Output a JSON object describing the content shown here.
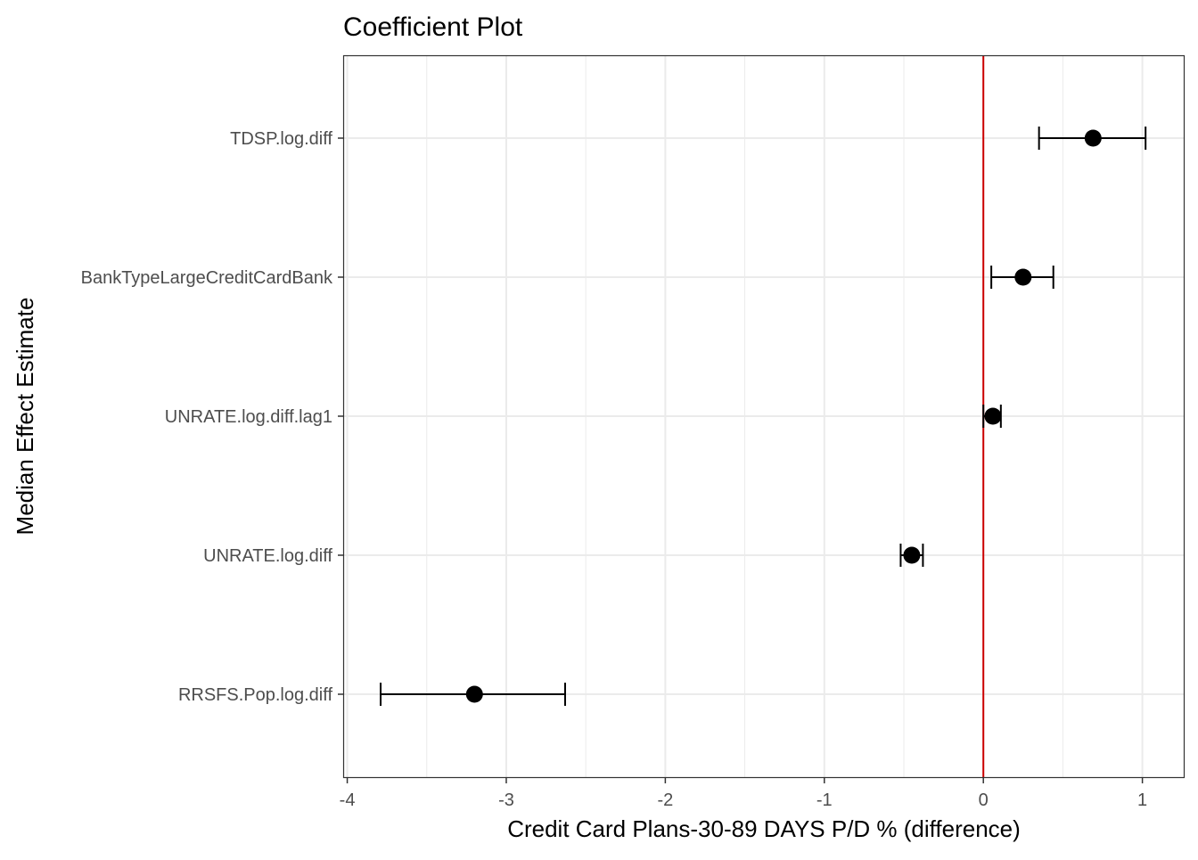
{
  "chart_data": {
    "type": "scatter",
    "title": "Coefficient Plot",
    "xlabel": "Credit Card Plans-30-89 DAYS P/D % (difference)",
    "ylabel": "Median Effect Estimate",
    "xlim": [
      -4.02,
      1.26
    ],
    "xticks": [
      -4,
      -3,
      -2,
      -1,
      0,
      1
    ],
    "xtick_labels": [
      "-4",
      "-3",
      "-2",
      "-1",
      "0",
      "1"
    ],
    "categories": [
      "TDSP.log.diff",
      "BankTypeLargeCreditCardBank",
      "UNRATE.log.diff.lag1",
      "UNRATE.log.diff",
      "RRSFS.Pop.log.diff"
    ],
    "estimates": [
      0.69,
      0.25,
      0.06,
      -0.45,
      -3.2
    ],
    "lower": [
      0.35,
      0.05,
      0.0,
      -0.52,
      -3.79
    ],
    "upper": [
      1.02,
      0.44,
      0.11,
      -0.38,
      -2.63
    ],
    "reference_line": 0,
    "grid": true,
    "legend": "none",
    "colors": {
      "point": "#000000",
      "errorbar": "#000000",
      "reference_line": "#cc0000",
      "grid": "#ebebeb",
      "panel_border": "#333333"
    }
  }
}
